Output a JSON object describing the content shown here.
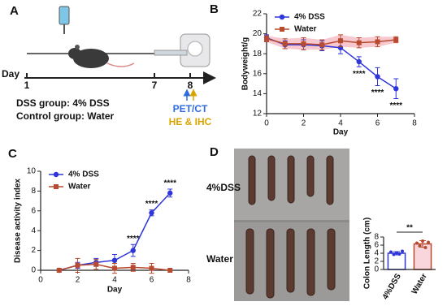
{
  "panel_labels": [
    "A",
    "B",
    "C",
    "D"
  ],
  "timeline": {
    "axis_label": "Day",
    "days": [
      1,
      7,
      8
    ],
    "groups": [
      "DSS group: 4% DSS",
      "Control group: Water"
    ],
    "readouts": [
      "PET/CT",
      "HE & IHC"
    ]
  },
  "photo": {
    "rows": [
      "4%DSS",
      "Water"
    ]
  },
  "chart_data": [
    {
      "type": "line",
      "ylabel": "Bodyweight/g",
      "xlabel": "Day",
      "x": [
        0,
        1,
        2,
        3,
        4,
        5,
        6,
        7
      ],
      "xlim": [
        0,
        8
      ],
      "xticks": [
        0,
        2,
        4,
        6,
        8
      ],
      "ylim": [
        12,
        22
      ],
      "yticks": [
        12,
        14,
        16,
        18,
        20,
        22
      ],
      "legend": "upper left",
      "series": [
        {
          "name": "4% DSS",
          "color": "#2e35d9",
          "marker": "circle",
          "values": [
            19.6,
            18.9,
            18.9,
            18.8,
            18.6,
            17.2,
            15.7,
            14.5
          ],
          "errors": [
            0.3,
            0.4,
            0.5,
            0.5,
            0.6,
            0.5,
            0.9,
            1.0
          ],
          "significance": [
            null,
            null,
            null,
            null,
            null,
            "****",
            "****",
            "****"
          ]
        },
        {
          "name": "Water",
          "color": "#b84a2f",
          "marker": "square",
          "band": "#f7c9cf",
          "values": [
            19.5,
            19.0,
            19.0,
            18.9,
            19.3,
            19.1,
            19.2,
            19.4
          ],
          "errors": [
            0.3,
            0.5,
            0.6,
            0.5,
            0.6,
            0.5,
            0.5,
            0.3
          ]
        }
      ]
    },
    {
      "type": "line",
      "ylabel": "Disease activity index",
      "xlabel": "Day",
      "x": [
        1,
        2,
        3,
        4,
        5,
        6,
        7
      ],
      "xlim": [
        0,
        8
      ],
      "xticks": [
        0,
        2,
        4,
        6,
        8
      ],
      "ylim": [
        0,
        10
      ],
      "yticks": [
        0,
        2,
        4,
        6,
        8,
        10
      ],
      "legend": "upper left",
      "series": [
        {
          "name": "4% DSS",
          "color": "#2e35d9",
          "marker": "circle",
          "values": [
            0,
            0.5,
            0.8,
            1.0,
            2.0,
            5.8,
            7.8
          ],
          "errors": [
            0,
            0.3,
            0.4,
            0.6,
            0.6,
            0.3,
            0.4
          ],
          "significance": [
            null,
            null,
            null,
            null,
            "****",
            "****",
            "****"
          ]
        },
        {
          "name": "Water",
          "color": "#b84a2f",
          "marker": "square",
          "values": [
            0,
            0.5,
            0.6,
            0.2,
            0.3,
            0.2,
            0
          ],
          "errors": [
            0,
            0.7,
            0.5,
            0.5,
            0.4,
            0.5,
            0
          ]
        }
      ]
    },
    {
      "type": "bar",
      "ylabel": "Colon Length (cm)",
      "categories": [
        "4%DSS",
        "Water"
      ],
      "values": [
        4.0,
        6.3
      ],
      "errors": [
        0.4,
        0.8
      ],
      "points": [
        [
          4.3,
          3.7,
          4.1,
          3.8,
          4.5
        ],
        [
          6.5,
          5.8,
          7.0,
          5.4,
          6.7
        ]
      ],
      "colors": [
        "#2e35d9",
        "#b84a2f"
      ],
      "fills": [
        "#ffffff",
        "#f9d6dc"
      ],
      "ylim": [
        0,
        8
      ],
      "yticks": [
        0,
        2,
        4,
        6,
        8
      ],
      "significance": "**"
    }
  ]
}
